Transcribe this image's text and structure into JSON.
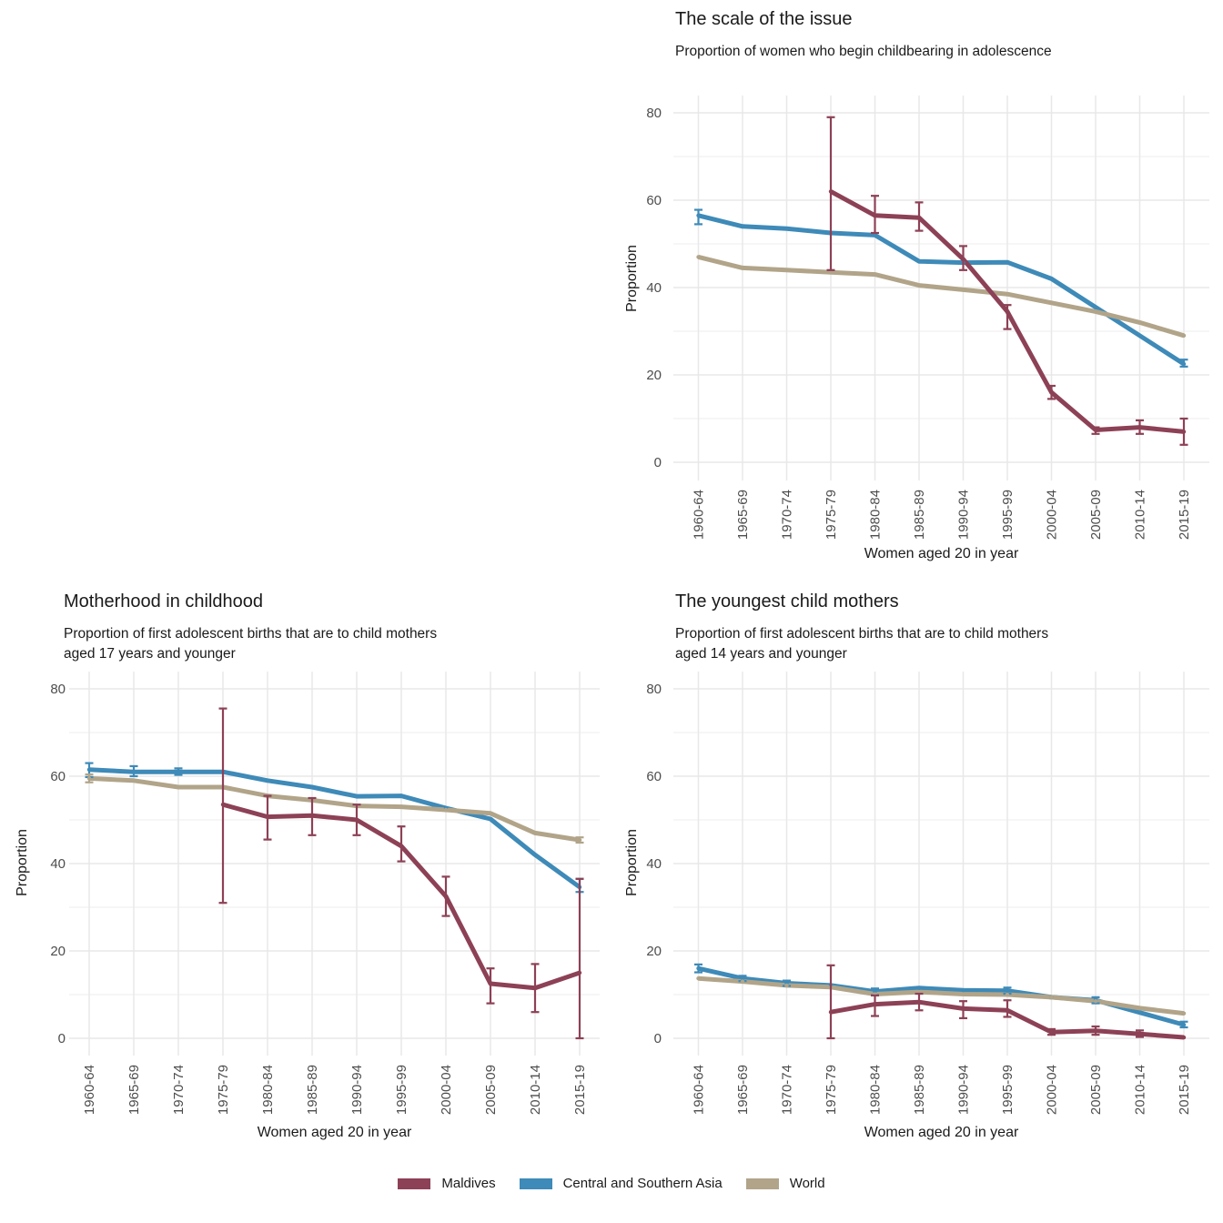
{
  "page": {
    "background": "#ffffff"
  },
  "legend": {
    "position": "bottom",
    "items": [
      {
        "label": "Maldives",
        "color": "#8d4156"
      },
      {
        "label": "Central and Southern Asia",
        "color": "#3e8ab8"
      },
      {
        "label": "World",
        "color": "#b1a489"
      }
    ]
  },
  "chart_data": [
    {
      "key": "scale-of-the-issue",
      "type": "line",
      "title": "The scale of the issue",
      "subtitle": "Proportion of women who begin childbearing in adolescence",
      "subtitle2": "",
      "xlabel": "Women aged 20 in year",
      "ylabel": "Proportion",
      "ylim": [
        0,
        80
      ],
      "yticks": [
        0,
        20,
        40,
        60,
        80
      ],
      "grid": true,
      "categories": [
        "1960-64",
        "1965-69",
        "1970-74",
        "1975-79",
        "1980-84",
        "1985-89",
        "1990-94",
        "1995-99",
        "2000-04",
        "2005-09",
        "2010-14",
        "2015-19"
      ],
      "series": [
        {
          "name": "Maldives",
          "color": "#8d4156",
          "values": [
            null,
            null,
            null,
            62,
            56.5,
            56,
            46.5,
            34.5,
            16,
            7.4,
            8,
            7
          ],
          "err_low": [
            null,
            null,
            null,
            44,
            52.5,
            53,
            44,
            30.5,
            14.5,
            6.5,
            6.5,
            4
          ],
          "err_high": [
            null,
            null,
            null,
            79,
            61,
            59.5,
            49.5,
            36,
            17.5,
            8,
            9.6,
            10
          ]
        },
        {
          "name": "Central and Southern Asia",
          "color": "#3e8ab8",
          "values": [
            56.5,
            54,
            53.5,
            52.5,
            52,
            46,
            45.7,
            45.8,
            42,
            35.5,
            29,
            22.5
          ],
          "err_low": [
            54.5,
            null,
            null,
            null,
            null,
            null,
            null,
            null,
            null,
            null,
            null,
            21.9
          ],
          "err_high": [
            57.8,
            null,
            null,
            null,
            null,
            null,
            null,
            null,
            null,
            null,
            null,
            23.5
          ]
        },
        {
          "name": "World",
          "color": "#b1a489",
          "values": [
            47,
            44.5,
            44,
            43.5,
            43,
            40.5,
            39.5,
            38.5,
            36.5,
            34.5,
            32,
            29
          ],
          "err_low": [
            null,
            null,
            null,
            null,
            null,
            null,
            null,
            null,
            null,
            null,
            null,
            null
          ],
          "err_high": [
            null,
            null,
            null,
            null,
            null,
            null,
            null,
            null,
            null,
            null,
            null,
            null
          ]
        }
      ]
    },
    {
      "key": "motherhood-in-childhood",
      "type": "line",
      "title": "Motherhood in childhood",
      "subtitle": "Proportion of first adolescent births that are to child mothers",
      "subtitle2": "aged 17 years and younger",
      "xlabel": "Women aged 20 in year",
      "ylabel": "Proportion",
      "ylim": [
        0,
        80
      ],
      "yticks": [
        0,
        20,
        40,
        60,
        80
      ],
      "grid": true,
      "categories": [
        "1960-64",
        "1965-69",
        "1970-74",
        "1975-79",
        "1980-84",
        "1985-89",
        "1990-94",
        "1995-99",
        "2000-04",
        "2005-09",
        "2010-14",
        "2015-19"
      ],
      "series": [
        {
          "name": "Maldives",
          "color": "#8d4156",
          "values": [
            null,
            null,
            null,
            53.5,
            50.7,
            51,
            50,
            44,
            32.5,
            12.5,
            11.5,
            15
          ],
          "err_low": [
            null,
            null,
            null,
            31,
            45.5,
            46.5,
            46.5,
            40.5,
            28,
            8,
            6,
            0
          ],
          "err_high": [
            null,
            null,
            null,
            75.5,
            55.5,
            55,
            53.5,
            48.5,
            37,
            16,
            17,
            36.5
          ]
        },
        {
          "name": "Central and Southern Asia",
          "color": "#3e8ab8",
          "values": [
            61.5,
            61,
            61,
            61,
            59,
            57.5,
            55.4,
            55.5,
            52.7,
            50.2,
            42,
            34.6
          ],
          "err_low": [
            59.8,
            60,
            60.3,
            null,
            null,
            null,
            null,
            null,
            null,
            null,
            null,
            33.5
          ],
          "err_high": [
            63,
            62.3,
            61.8,
            null,
            null,
            null,
            null,
            null,
            null,
            null,
            null,
            36.5
          ]
        },
        {
          "name": "World",
          "color": "#b1a489",
          "values": [
            59.5,
            59,
            57.5,
            57.5,
            55.5,
            54.5,
            53.2,
            53,
            52.3,
            51.5,
            47,
            45.4
          ],
          "err_low": [
            58.6,
            null,
            null,
            null,
            null,
            null,
            null,
            null,
            null,
            null,
            null,
            44.8
          ],
          "err_high": [
            60.4,
            null,
            null,
            null,
            null,
            null,
            null,
            null,
            null,
            null,
            null,
            46
          ]
        }
      ]
    },
    {
      "key": "youngest-child-mothers",
      "type": "line",
      "title": "The youngest child mothers",
      "subtitle": "Proportion of first adolescent births that are to child mothers",
      "subtitle2": "aged 14 years and younger",
      "xlabel": "Women aged 20 in year",
      "ylabel": "Proportion",
      "ylim": [
        0,
        80
      ],
      "yticks": [
        0,
        20,
        40,
        60,
        80
      ],
      "grid": true,
      "categories": [
        "1960-64",
        "1965-69",
        "1970-74",
        "1975-79",
        "1980-84",
        "1985-89",
        "1990-94",
        "1995-99",
        "2000-04",
        "2005-09",
        "2010-14",
        "2015-19"
      ],
      "series": [
        {
          "name": "Maldives",
          "color": "#8d4156",
          "values": [
            null,
            null,
            null,
            6,
            7.8,
            8.3,
            6.8,
            6.4,
            1.4,
            1.7,
            1,
            0.2
          ],
          "err_low": [
            null,
            null,
            null,
            0,
            5.1,
            6.4,
            4.6,
            4.9,
            0.8,
            0.8,
            0.3,
            null
          ],
          "err_high": [
            null,
            null,
            null,
            16.7,
            9.8,
            10.2,
            8.5,
            8.7,
            2.1,
            2.7,
            1.8,
            null
          ]
        },
        {
          "name": "Central and Southern Asia",
          "color": "#3e8ab8",
          "values": [
            16,
            13.7,
            12.6,
            12.1,
            10.7,
            11.5,
            11,
            10.9,
            9.4,
            8.7,
            5.9,
            3.1
          ],
          "err_low": [
            15.1,
            13.1,
            12,
            null,
            9.9,
            null,
            null,
            10.2,
            null,
            8,
            null,
            2.5
          ],
          "err_high": [
            16.9,
            14.3,
            13.2,
            null,
            11.4,
            null,
            null,
            11.6,
            null,
            9.4,
            null,
            3.8
          ]
        },
        {
          "name": "World",
          "color": "#b1a489",
          "values": [
            13.7,
            13,
            12.1,
            11.7,
            10.1,
            10.6,
            10.1,
            10,
            9.4,
            8.5,
            6.9,
            5.7
          ],
          "err_low": [
            null,
            null,
            null,
            null,
            null,
            null,
            null,
            null,
            null,
            null,
            null,
            null
          ],
          "err_high": [
            null,
            null,
            null,
            null,
            null,
            null,
            null,
            null,
            null,
            null,
            null,
            null
          ]
        }
      ]
    }
  ]
}
